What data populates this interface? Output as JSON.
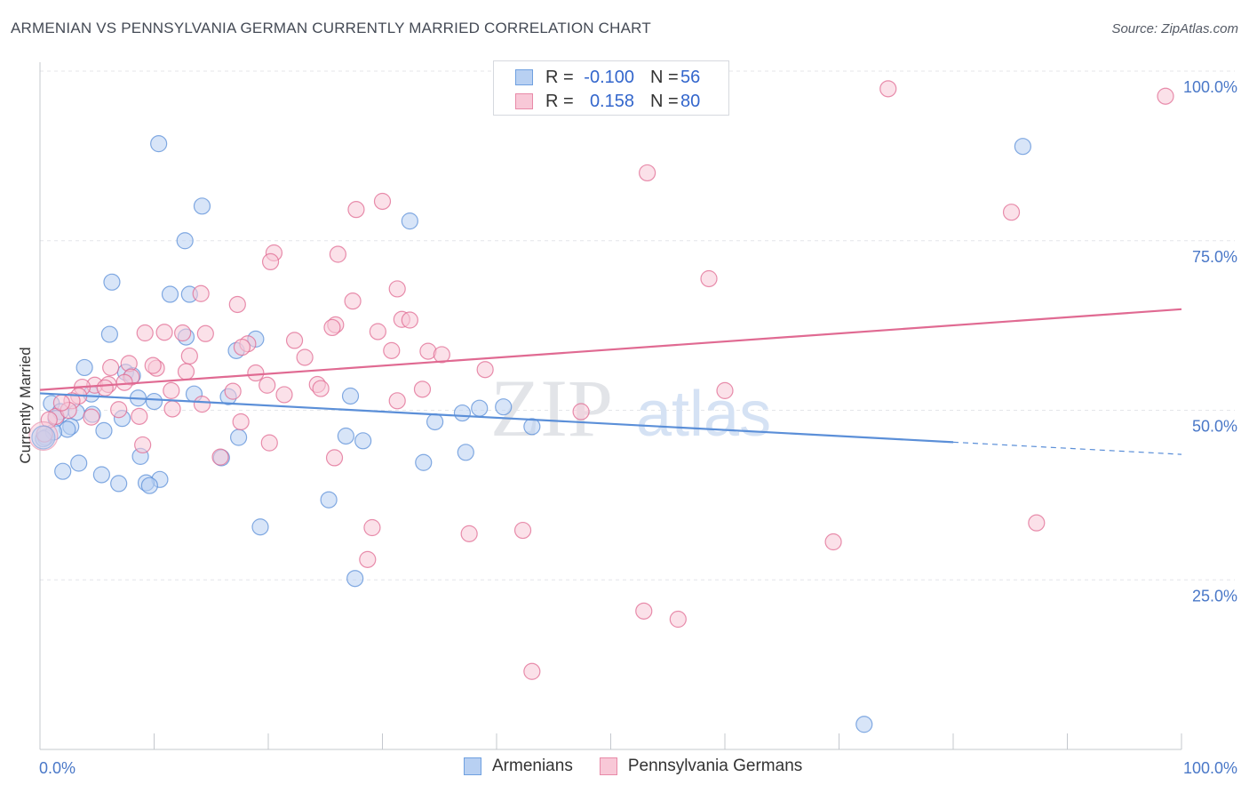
{
  "title": "ARMENIAN VS PENNSYLVANIA GERMAN CURRENTLY MARRIED CORRELATION CHART",
  "source": "Source: ZipAtlas.com",
  "watermark": {
    "zip": "ZIP",
    "atlas": "atlas"
  },
  "legend": {
    "rows": [
      {
        "r_label": "R =",
        "r_value": "-0.100",
        "n_label": "N =",
        "n_value": "56",
        "color": "#6fa0e0",
        "fill": "#b8d0f2"
      },
      {
        "r_label": "R =",
        "r_value": "0.158",
        "n_label": "N =",
        "n_value": "80",
        "color": "#e88aa8",
        "fill": "#f8c8d7"
      }
    ]
  },
  "chart_data": {
    "type": "scatter",
    "title": "ARMENIAN VS PENNSYLVANIA GERMAN CURRENTLY MARRIED CORRELATION CHART",
    "xlabel": "",
    "ylabel": "Currently Married",
    "xlim": [
      0,
      100
    ],
    "ylim": [
      0,
      103
    ],
    "y_ticks": [
      {
        "value": 100,
        "label": "100.0%"
      },
      {
        "value": 75,
        "label": "75.0%"
      },
      {
        "value": 50,
        "label": "50.0%"
      },
      {
        "value": 25,
        "label": "25.0%"
      }
    ],
    "x_tick_labels": [
      {
        "value": 0,
        "label": "0.0%"
      },
      {
        "value": 100,
        "label": "100.0%"
      }
    ],
    "x_minor_ticks": [
      0,
      10,
      20,
      30,
      40,
      50,
      60,
      70,
      80,
      90,
      100
    ],
    "grid": true,
    "legend_position": "bottom",
    "series": [
      {
        "name": "Armenians",
        "color": "#5b8fd8",
        "fill": "#b8d0f2",
        "trend": {
          "x0": 0,
          "y0": 52.5,
          "x1": 80,
          "y1": 45.3,
          "dash_to_x": 100,
          "dash_to_y": 43.5
        },
        "points": [
          [
            10.4,
            89.3
          ],
          [
            14.2,
            80.1
          ],
          [
            12.7,
            75.0
          ],
          [
            32.4,
            77.9
          ],
          [
            86.1,
            88.9
          ],
          [
            6.3,
            68.9
          ],
          [
            11.4,
            67.1
          ],
          [
            13.1,
            67.1
          ],
          [
            12.8,
            60.8
          ],
          [
            6.1,
            61.2
          ],
          [
            18.9,
            60.5
          ],
          [
            17.2,
            58.8
          ],
          [
            3.9,
            56.3
          ],
          [
            7.5,
            55.6
          ],
          [
            8.1,
            55.1
          ],
          [
            4.5,
            52.4
          ],
          [
            8.6,
            51.8
          ],
          [
            10.0,
            51.3
          ],
          [
            13.5,
            52.4
          ],
          [
            16.5,
            52.0
          ],
          [
            27.2,
            52.1
          ],
          [
            1.0,
            51.0
          ],
          [
            1.8,
            49.8
          ],
          [
            4.6,
            49.4
          ],
          [
            3.2,
            49.7
          ],
          [
            1.4,
            48.8
          ],
          [
            7.2,
            48.8
          ],
          [
            37.0,
            49.6
          ],
          [
            38.5,
            50.3
          ],
          [
            40.6,
            50.5
          ],
          [
            34.6,
            48.3
          ],
          [
            2.7,
            47.6
          ],
          [
            2.4,
            47.2
          ],
          [
            5.6,
            47.0
          ],
          [
            0.5,
            46.0
          ],
          [
            17.4,
            46.0
          ],
          [
            26.8,
            46.2
          ],
          [
            28.3,
            45.5
          ],
          [
            37.3,
            43.8
          ],
          [
            8.8,
            43.2
          ],
          [
            15.9,
            43.0
          ],
          [
            3.4,
            42.2
          ],
          [
            33.6,
            42.3
          ],
          [
            2.0,
            41.0
          ],
          [
            5.4,
            40.5
          ],
          [
            10.5,
            39.8
          ],
          [
            6.9,
            39.2
          ],
          [
            9.3,
            39.3
          ],
          [
            9.6,
            38.9
          ],
          [
            25.3,
            36.8
          ],
          [
            19.3,
            32.8
          ],
          [
            27.6,
            25.2
          ],
          [
            72.2,
            3.7
          ],
          [
            43.1,
            47.6
          ],
          [
            1.2,
            46.8
          ],
          [
            0.3,
            45.8
          ]
        ]
      },
      {
        "name": "Pennsylvania Germans",
        "color": "#e06a92",
        "fill": "#f8c8d7",
        "trend": {
          "x0": 0,
          "y0": 53.0,
          "x1": 100,
          "y1": 64.9
        },
        "points": [
          [
            74.3,
            97.4
          ],
          [
            98.6,
            96.3
          ],
          [
            53.2,
            85.0
          ],
          [
            30.0,
            80.8
          ],
          [
            27.7,
            79.6
          ],
          [
            85.1,
            79.2
          ],
          [
            20.5,
            73.2
          ],
          [
            26.1,
            73.0
          ],
          [
            20.2,
            71.9
          ],
          [
            58.6,
            69.4
          ],
          [
            31.3,
            67.9
          ],
          [
            14.1,
            67.2
          ],
          [
            27.4,
            66.1
          ],
          [
            17.3,
            65.6
          ],
          [
            31.7,
            63.4
          ],
          [
            32.4,
            63.3
          ],
          [
            25.9,
            62.6
          ],
          [
            25.6,
            62.2
          ],
          [
            29.6,
            61.6
          ],
          [
            9.2,
            61.4
          ],
          [
            10.9,
            61.5
          ],
          [
            12.5,
            61.4
          ],
          [
            14.5,
            61.3
          ],
          [
            22.3,
            60.3
          ],
          [
            18.2,
            59.8
          ],
          [
            17.7,
            59.3
          ],
          [
            30.8,
            58.8
          ],
          [
            34.0,
            58.7
          ],
          [
            35.2,
            58.2
          ],
          [
            13.1,
            58.0
          ],
          [
            23.2,
            57.8
          ],
          [
            10.2,
            56.2
          ],
          [
            7.8,
            56.9
          ],
          [
            6.2,
            56.3
          ],
          [
            9.9,
            56.6
          ],
          [
            39.0,
            56.0
          ],
          [
            12.8,
            55.7
          ],
          [
            18.9,
            55.5
          ],
          [
            8.0,
            54.9
          ],
          [
            7.4,
            54.1
          ],
          [
            4.8,
            53.7
          ],
          [
            6.0,
            53.8
          ],
          [
            19.9,
            53.7
          ],
          [
            24.3,
            53.8
          ],
          [
            3.7,
            53.4
          ],
          [
            5.7,
            53.3
          ],
          [
            11.5,
            52.9
          ],
          [
            16.9,
            52.8
          ],
          [
            24.6,
            53.2
          ],
          [
            33.5,
            53.1
          ],
          [
            21.4,
            52.3
          ],
          [
            60.0,
            52.9
          ],
          [
            3.4,
            52.1
          ],
          [
            2.8,
            51.4
          ],
          [
            31.3,
            51.4
          ],
          [
            14.2,
            50.9
          ],
          [
            11.6,
            50.2
          ],
          [
            47.4,
            49.8
          ],
          [
            1.4,
            49.1
          ],
          [
            4.5,
            49.0
          ],
          [
            8.7,
            49.1
          ],
          [
            0.8,
            48.6
          ],
          [
            9.0,
            44.9
          ],
          [
            20.1,
            45.2
          ],
          [
            15.8,
            43.1
          ],
          [
            25.8,
            43.0
          ],
          [
            29.1,
            32.7
          ],
          [
            37.6,
            31.8
          ],
          [
            42.3,
            32.3
          ],
          [
            87.3,
            33.4
          ],
          [
            69.5,
            30.6
          ],
          [
            28.7,
            28.0
          ],
          [
            52.9,
            20.4
          ],
          [
            55.9,
            19.2
          ],
          [
            43.1,
            11.5
          ],
          [
            2.5,
            50.0
          ],
          [
            0.4,
            46.5
          ],
          [
            1.9,
            51.1
          ],
          [
            6.9,
            50.1
          ],
          [
            17.6,
            48.3
          ]
        ]
      }
    ]
  },
  "bottom_legend": [
    {
      "label": "Armenians"
    },
    {
      "label": "Pennsylvania Germans"
    }
  ]
}
